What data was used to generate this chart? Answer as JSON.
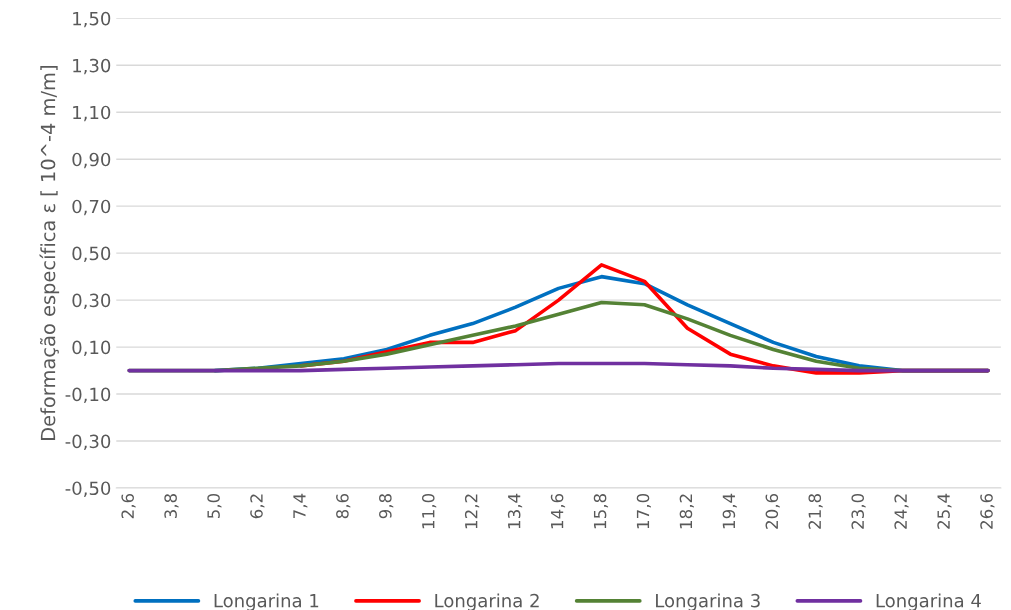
{
  "chart_data": {
    "type": "line",
    "ylabel": "Deformação específica ε [ 10^-4 m/m]",
    "categories": [
      "2,6",
      "3,8",
      "5,0",
      "6,2",
      "7,4",
      "8,6",
      "9,8",
      "11,0",
      "12,2",
      "13,4",
      "14,6",
      "15,8",
      "17,0",
      "18,2",
      "19,4",
      "20,6",
      "21,8",
      "23,0",
      "24,2",
      "25,4",
      "26,6"
    ],
    "series": [
      {
        "name": "Longarina 1",
        "color": "#0070c0",
        "values": [
          null,
          null,
          0,
          0.01,
          0.03,
          0.05,
          0.09,
          0.15,
          0.2,
          0.27,
          0.35,
          0.4,
          0.37,
          0.28,
          0.2,
          0.12,
          0.06,
          0.02,
          0,
          0,
          0
        ]
      },
      {
        "name": "Longarina 2",
        "color": "#ff0000",
        "values": [
          null,
          null,
          null,
          null,
          0.02,
          0.04,
          0.08,
          0.12,
          0.12,
          0.17,
          0.3,
          0.45,
          0.38,
          0.18,
          0.07,
          0.02,
          -0.01,
          -0.01,
          0,
          0,
          0
        ]
      },
      {
        "name": "Longarina 3",
        "color": "#548235",
        "values": [
          0,
          0,
          0,
          0.01,
          0.02,
          0.04,
          0.07,
          0.11,
          0.15,
          0.19,
          0.24,
          0.29,
          0.28,
          0.22,
          0.15,
          0.09,
          0.04,
          0.01,
          0,
          0,
          0
        ]
      },
      {
        "name": "Longarina 4",
        "color": "#7030a0",
        "values": [
          0,
          0,
          0,
          0,
          0,
          0.005,
          0.01,
          0.015,
          0.02,
          0.025,
          0.03,
          0.03,
          0.03,
          0.025,
          0.02,
          0.01,
          0.005,
          0,
          0,
          0,
          0
        ]
      }
    ],
    "ylim": [
      -0.5,
      1.5
    ],
    "yticks": [
      {
        "value": -0.5,
        "label": "-0,50"
      },
      {
        "value": -0.3,
        "label": "-0,30"
      },
      {
        "value": -0.1,
        "label": "-0,10"
      },
      {
        "value": 0.1,
        "label": "0,10"
      },
      {
        "value": 0.3,
        "label": "0,30"
      },
      {
        "value": 0.5,
        "label": "0,50"
      },
      {
        "value": 0.7,
        "label": "0,70"
      },
      {
        "value": 0.9,
        "label": "0,90"
      },
      {
        "value": 1.1,
        "label": "1,10"
      },
      {
        "value": 1.3,
        "label": "1,30"
      },
      {
        "value": 1.5,
        "label": "1,50"
      }
    ],
    "grid": "y",
    "legend": "bottom",
    "marker": "none",
    "line_style": "solid"
  }
}
